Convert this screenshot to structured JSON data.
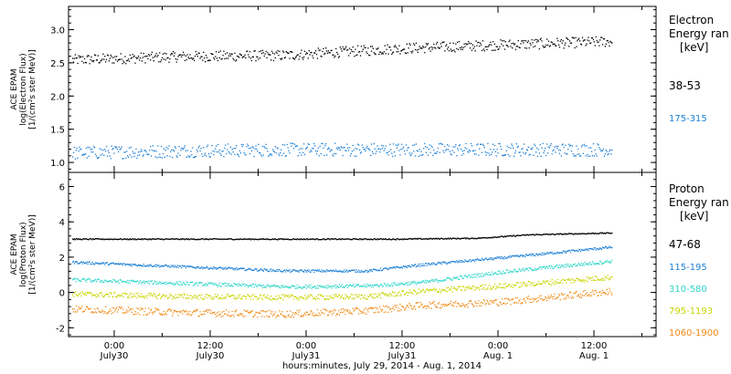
{
  "chart_data": [
    {
      "type": "scatter",
      "ylabel_lines": [
        "ACE EPAM",
        "log(Electron Flux)",
        "[1/(cm²s ster MeV)]"
      ],
      "ylim": [
        0.85,
        3.35
      ],
      "yticks": [
        1.0,
        1.5,
        2.0,
        2.5,
        3.0
      ],
      "ytick_labels": [
        "1.0",
        "1.5",
        "2.0",
        "2.5",
        "3.0"
      ],
      "legend_title": [
        "Electron",
        "Energy ran",
        "[keV]"
      ],
      "series": [
        {
          "name": "38-53",
          "color": "#000000",
          "base": [
            [
              0,
              2.55
            ],
            [
              20,
              2.6
            ],
            [
              40,
              2.62
            ],
            [
              60,
              2.72
            ],
            [
              80,
              2.78
            ],
            [
              100,
              2.83
            ]
          ],
          "noise": 0.08
        },
        {
          "name": "175-315",
          "color": "#1c7fd6",
          "base": [
            [
              0,
              1.15
            ],
            [
              20,
              1.18
            ],
            [
              40,
              1.2
            ],
            [
              60,
              1.2
            ],
            [
              80,
              1.2
            ],
            [
              100,
              1.2
            ]
          ],
          "noise": 0.1
        }
      ]
    },
    {
      "type": "scatter",
      "ylabel_lines": [
        "ACE EPAM",
        "log(Proton Flux)",
        "[1/(cm²s ster MeV)]"
      ],
      "ylim": [
        -2.5,
        6.8
      ],
      "yticks": [
        -2,
        0,
        2,
        4,
        6
      ],
      "ytick_labels": [
        "-2",
        "0",
        "2",
        "4",
        "6"
      ],
      "legend_title": [
        "Proton",
        "Energy ran",
        "[keV]"
      ],
      "series": [
        {
          "name": "47-68",
          "color": "#000000",
          "base": [
            [
              0,
              3.05
            ],
            [
              40,
              3.05
            ],
            [
              60,
              3.05
            ],
            [
              75,
              3.1
            ],
            [
              85,
              3.3
            ],
            [
              100,
              3.4
            ]
          ],
          "noise": 0.03
        },
        {
          "name": "115-195",
          "color": "#1c7fd6",
          "base": [
            [
              0,
              1.75
            ],
            [
              20,
              1.5
            ],
            [
              40,
              1.25
            ],
            [
              55,
              1.25
            ],
            [
              65,
              1.6
            ],
            [
              80,
              2.0
            ],
            [
              100,
              2.6
            ]
          ],
          "noise": 0.07
        },
        {
          "name": "310-580",
          "color": "#2fd6c9",
          "base": [
            [
              0,
              0.75
            ],
            [
              20,
              0.55
            ],
            [
              40,
              0.35
            ],
            [
              55,
              0.4
            ],
            [
              65,
              0.6
            ],
            [
              80,
              1.2
            ],
            [
              100,
              1.8
            ]
          ],
          "noise": 0.1
        },
        {
          "name": "795-1193",
          "color": "#c8d400",
          "base": [
            [
              0,
              -0.05
            ],
            [
              20,
              -0.2
            ],
            [
              40,
              -0.25
            ],
            [
              55,
              -0.2
            ],
            [
              65,
              0.1
            ],
            [
              80,
              0.4
            ],
            [
              100,
              0.9
            ]
          ],
          "noise": 0.15
        },
        {
          "name": "1060-1900",
          "color": "#f08a14",
          "base": [
            [
              0,
              -0.9
            ],
            [
              20,
              -1.1
            ],
            [
              40,
              -1.2
            ],
            [
              55,
              -1.0
            ],
            [
              65,
              -0.7
            ],
            [
              80,
              -0.5
            ],
            [
              100,
              0.1
            ]
          ],
          "noise": 0.2
        }
      ]
    }
  ],
  "x_axis": {
    "tick_labels": [
      [
        "0:00",
        "July30"
      ],
      [
        "12:00",
        "July30"
      ],
      [
        "0:00",
        "July31"
      ],
      [
        "12:00",
        "July31"
      ],
      [
        "0:00",
        "Aug. 1"
      ],
      [
        "12:00",
        "Aug. 1"
      ]
    ],
    "xlabel": "hours:minutes, July 29, 2014 - Aug.  1, 2014"
  }
}
